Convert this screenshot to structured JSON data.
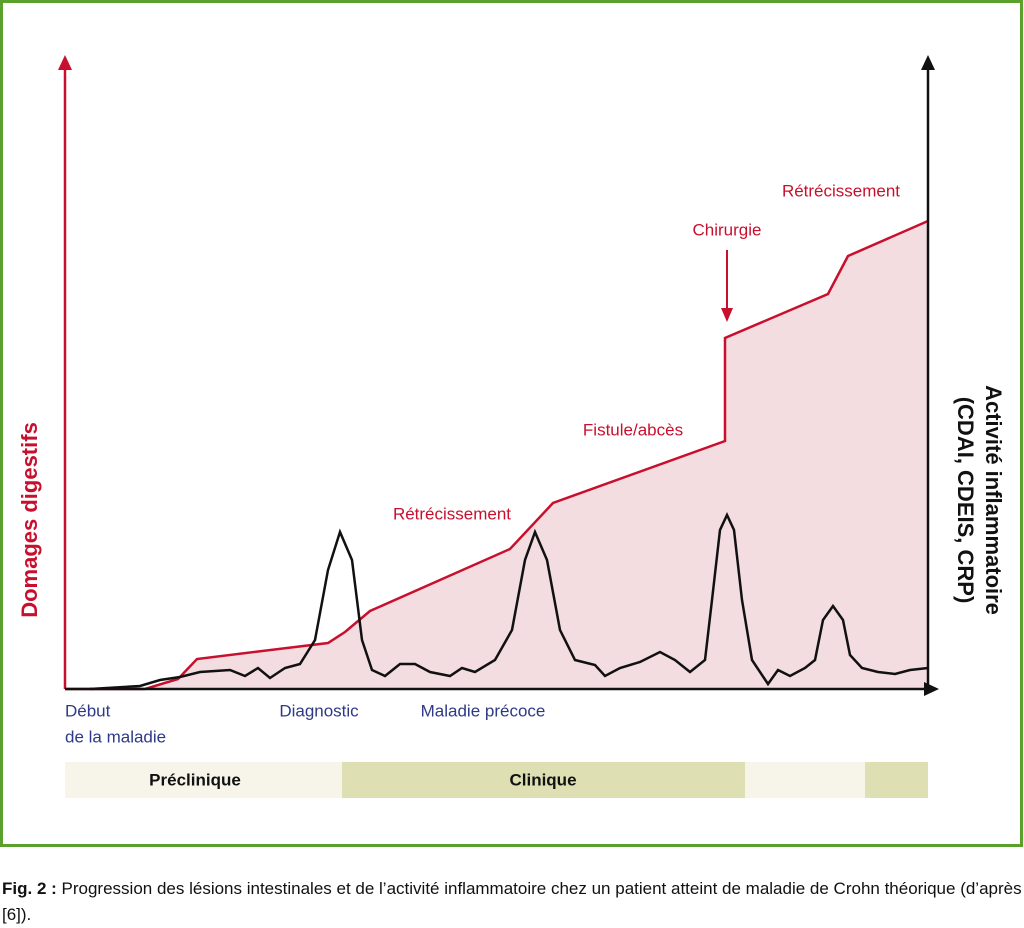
{
  "axes": {
    "left_label": "Domages digestifs",
    "right_label": [
      "Activité inflammatoire",
      "(CDAI, CDEIS, CRP)"
    ]
  },
  "annotations": [
    "Rétrécissement",
    "Fistule/abcès",
    "Chirurgie",
    "Rétrécissement"
  ],
  "x_labels": [
    [
      "Début",
      "de la maladie"
    ],
    "Diagnostic",
    "Maladie précoce"
  ],
  "phases": [
    "Préclinique",
    "Clinique"
  ],
  "caption": {
    "label": "Fig. 2 :",
    "text": "Progression des lésions intestinales et de l’activité inflammatoire chez un patient atteint de maladie de Crohn théorique (d’après [6])."
  }
}
